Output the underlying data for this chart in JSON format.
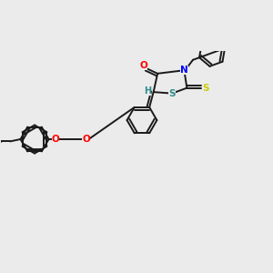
{
  "bg": "#ebebeb",
  "bond_color": "#1a1a1a",
  "atom_colors": {
    "O": "#ff0000",
    "N": "#0000ff",
    "S_yellow": "#cccc00",
    "S_teal": "#2e8b8b",
    "H": "#2e8b8b",
    "C": "#1a1a1a"
  },
  "lw": 1.4,
  "r_hex": 0.052,
  "fs": 7.5
}
